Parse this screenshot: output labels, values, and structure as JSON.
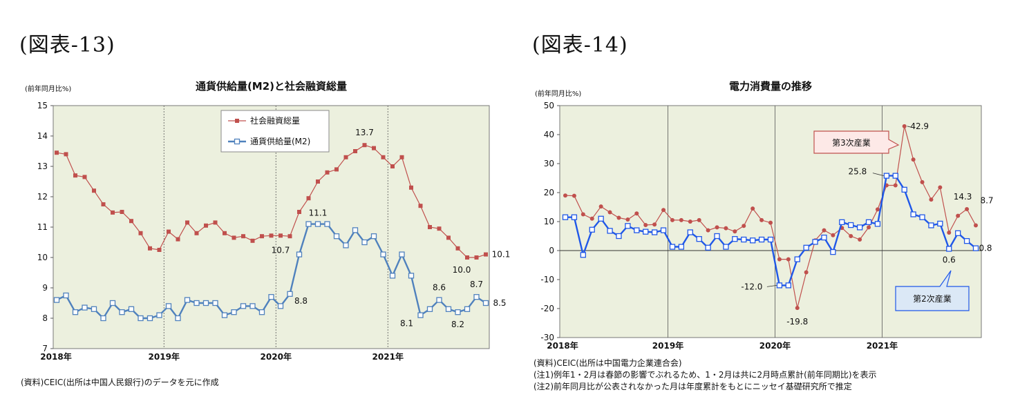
{
  "figures": {
    "fig13": {
      "label": "(図表-13)"
    },
    "fig14": {
      "label": "(図表-14)"
    }
  },
  "chart_data": [
    {
      "type": "line",
      "title": "通貨供給量(M2)と社会融資総量",
      "ylabel": "(前年同月比%)",
      "ylim": [
        7,
        15
      ],
      "yticks": [
        "7",
        "8",
        "9",
        "10",
        "11",
        "12",
        "13",
        "14",
        "15"
      ],
      "xlabels": [
        "2018年",
        "2019年",
        "2020年",
        "2021年"
      ],
      "grid": false,
      "legend_position": "top-center",
      "series": [
        {
          "name": "社会融資総量",
          "color": "#c0504d",
          "marker": "square-filled",
          "values": [
            13.45,
            13.4,
            12.7,
            12.65,
            12.2,
            11.75,
            11.48,
            11.5,
            11.2,
            10.8,
            10.3,
            10.25,
            10.85,
            10.6,
            11.15,
            10.8,
            11.05,
            11.15,
            10.8,
            10.65,
            10.7,
            10.55,
            10.7,
            10.72,
            10.72,
            10.7,
            11.5,
            11.95,
            12.5,
            12.8,
            12.9,
            13.3,
            13.5,
            13.7,
            13.6,
            13.3,
            13.0,
            13.3,
            12.3,
            11.7,
            11.0,
            10.95,
            10.65,
            10.3,
            10.0,
            10.0,
            10.1
          ]
        },
        {
          "name": "通貨供給量(M2)",
          "color": "#4f81bd",
          "marker": "square-open",
          "values": [
            8.6,
            8.75,
            8.2,
            8.35,
            8.3,
            8.0,
            8.5,
            8.2,
            8.3,
            8.0,
            8.0,
            8.1,
            8.4,
            8.0,
            8.6,
            8.5,
            8.5,
            8.5,
            8.1,
            8.2,
            8.4,
            8.4,
            8.2,
            8.7,
            8.4,
            8.8,
            10.1,
            11.1,
            11.1,
            11.1,
            10.7,
            10.4,
            10.9,
            10.5,
            10.7,
            10.1,
            9.4,
            10.1,
            9.4,
            8.1,
            8.3,
            8.6,
            8.3,
            8.2,
            8.3,
            8.7,
            8.5
          ]
        }
      ],
      "annotations": [
        "13.7",
        "11.1",
        "10.7",
        "8.8",
        "8.1",
        "8.6",
        "8.2",
        "8.7",
        "10.0",
        "10.1",
        "8.5"
      ],
      "source": "(資料)CEIC(出所は中国人民銀行)のデータを元に作成"
    },
    {
      "type": "line",
      "title": "電力消費量の推移",
      "ylabel": "(前年同月比%)",
      "ylim": [
        -30,
        50
      ],
      "yticks": [
        "-30",
        "-20",
        "-10",
        "0",
        "10",
        "20",
        "30",
        "40",
        "50"
      ],
      "xlabels": [
        "2018年",
        "2019年",
        "2020年",
        "2021年"
      ],
      "grid": false,
      "series": [
        {
          "name": "第3次産業",
          "color": "#c0504d",
          "marker": "circle-filled",
          "values": [
            19.0,
            18.9,
            12.5,
            11.0,
            15.2,
            13.2,
            11.3,
            10.7,
            12.8,
            8.8,
            9.0,
            14.0,
            10.5,
            10.5,
            10.0,
            10.5,
            7.0,
            8.0,
            7.7,
            6.6,
            8.5,
            14.5,
            10.5,
            9.6,
            -3.0,
            -3.0,
            -19.8,
            -7.5,
            3.5,
            7.0,
            5.3,
            7.8,
            5.0,
            3.8,
            8.0,
            14.2,
            22.5,
            22.5,
            42.9,
            31.4,
            23.6,
            17.6,
            21.8,
            6.2,
            12.0,
            14.3,
            8.7
          ]
        },
        {
          "name": "第2次産業",
          "color": "#1f57e8",
          "marker": "square-open",
          "values": [
            11.5,
            11.5,
            -1.5,
            7.2,
            11.0,
            6.8,
            5.0,
            8.5,
            7.0,
            6.5,
            6.3,
            7.0,
            1.3,
            1.3,
            6.3,
            4.0,
            1.0,
            5.0,
            1.3,
            4.0,
            3.8,
            3.5,
            3.8,
            3.8,
            -12.0,
            -12.0,
            -3.0,
            1.0,
            3.0,
            4.5,
            -0.5,
            9.8,
            8.8,
            8.0,
            9.8,
            9.2,
            25.8,
            25.8,
            21.0,
            12.5,
            11.5,
            8.7,
            9.3,
            0.6,
            6.0,
            3.3,
            0.8
          ]
        }
      ],
      "annotations": [
        "42.9",
        "25.8",
        "14.3",
        "8.7",
        "0.8",
        "0.6",
        "-12.0",
        "-19.8"
      ],
      "notes": [
        "(資料)CEIC(出所は中国電力企業連合会)",
        "(注1)例年1・2月は春節の影響でぶれるため、1・2月は共に2月時点累計(前年同期比)を表示",
        "(注2)前年同月比が公表されなかった月は年度累計をもとにニッセイ基礎研究所で推定"
      ]
    }
  ]
}
